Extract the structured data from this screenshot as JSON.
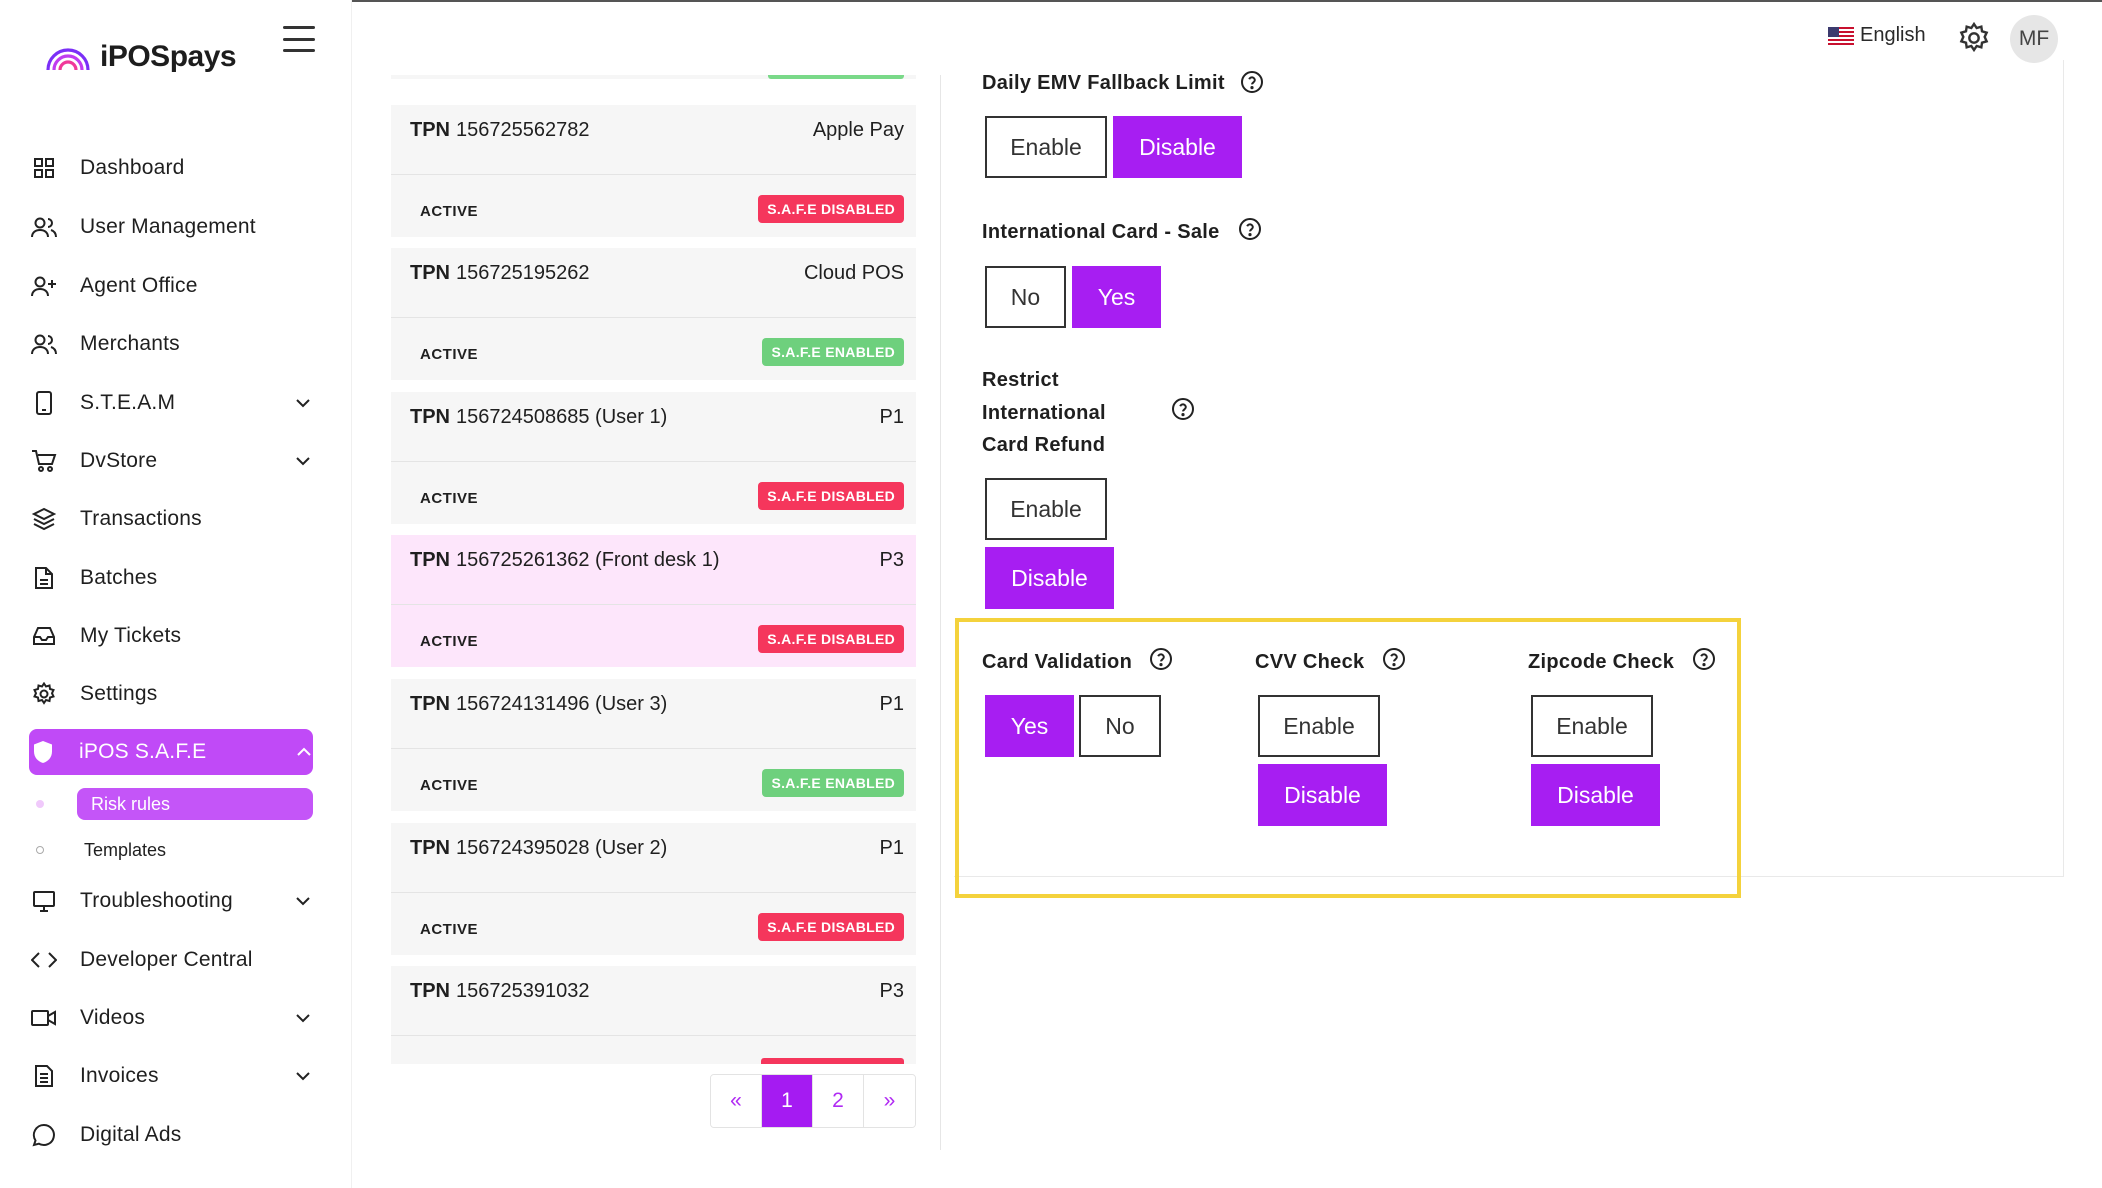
{
  "brand": {
    "name": "iPOSpays"
  },
  "topbar": {
    "language": "English",
    "avatar_initials": "MF"
  },
  "sidebar": {
    "items": [
      {
        "label": "Dashboard",
        "icon": "grid-icon"
      },
      {
        "label": "User Management",
        "icon": "users-icon"
      },
      {
        "label": "Agent Office",
        "icon": "user-plus-icon"
      },
      {
        "label": "Merchants",
        "icon": "users-icon"
      },
      {
        "label": "S.T.E.A.M",
        "icon": "mobile-icon"
      },
      {
        "label": "DvStore",
        "icon": "cart-icon"
      },
      {
        "label": "Transactions",
        "icon": "layers-icon"
      },
      {
        "label": "Batches",
        "icon": "file-icon"
      },
      {
        "label": "My Tickets",
        "icon": "inbox-icon"
      },
      {
        "label": "Settings",
        "icon": "gear-icon"
      },
      {
        "label": "iPOS S.A.F.E",
        "icon": "shield-icon"
      },
      {
        "label": "Troubleshooting",
        "icon": "monitor-icon"
      },
      {
        "label": "Developer Central",
        "icon": "code-icon"
      },
      {
        "label": "Videos",
        "icon": "video-icon"
      },
      {
        "label": "Invoices",
        "icon": "document-icon"
      },
      {
        "label": "Digital Ads",
        "icon": "chat-icon"
      }
    ],
    "sub_items": [
      {
        "label": "Risk rules"
      },
      {
        "label": "Templates"
      }
    ]
  },
  "terminals": {
    "tpn_prefix": "TPN",
    "items": [
      {
        "tpn": "156725562782",
        "device": "Apple Pay",
        "status": "ACTIVE",
        "safe": "S.A.F.E DISABLED"
      },
      {
        "tpn": "156725195262",
        "device": "Cloud POS",
        "status": "ACTIVE",
        "safe": "S.A.F.E ENABLED"
      },
      {
        "tpn": "156724508685 (User 1)",
        "device": "P1",
        "status": "ACTIVE",
        "safe": "S.A.F.E DISABLED"
      },
      {
        "tpn": "156725261362 (Front desk 1)",
        "device": "P3",
        "status": "ACTIVE",
        "safe": "S.A.F.E DISABLED"
      },
      {
        "tpn": "156724131496 (User 3)",
        "device": "P1",
        "status": "ACTIVE",
        "safe": "S.A.F.E ENABLED"
      },
      {
        "tpn": "156724395028 (User 2)",
        "device": "P1",
        "status": "ACTIVE",
        "safe": "S.A.F.E DISABLED"
      },
      {
        "tpn": "156725391032",
        "device": "P3",
        "status": "",
        "safe": ""
      }
    ]
  },
  "pagination": {
    "prev": "«",
    "pages": [
      "1",
      "2"
    ],
    "next": "»",
    "current": "1"
  },
  "rules": {
    "daily_emv": {
      "label": "Daily EMV Fallback Limit",
      "enable": "Enable",
      "disable": "Disable"
    },
    "intl_sale": {
      "label": "International Card - Sale",
      "no": "No",
      "yes": "Yes"
    },
    "restrict_refund": {
      "label_line1": "Restrict",
      "label_line2": "International",
      "label_line3": "Card Refund",
      "enable": "Enable",
      "disable": "Disable"
    },
    "card_validation": {
      "label": "Card Validation",
      "yes": "Yes",
      "no": "No"
    },
    "cvv_check": {
      "label": "CVV Check",
      "enable": "Enable",
      "disable": "Disable"
    },
    "zipcode_check": {
      "label": "Zipcode Check",
      "enable": "Enable",
      "disable": "Disable"
    }
  },
  "colors": {
    "accent": "#a71ef2",
    "sidebar_active": "#c04af7",
    "badge_disabled": "#f5365c",
    "badge_enabled": "#6ed07d",
    "highlight_frame": "#f4d23c"
  }
}
